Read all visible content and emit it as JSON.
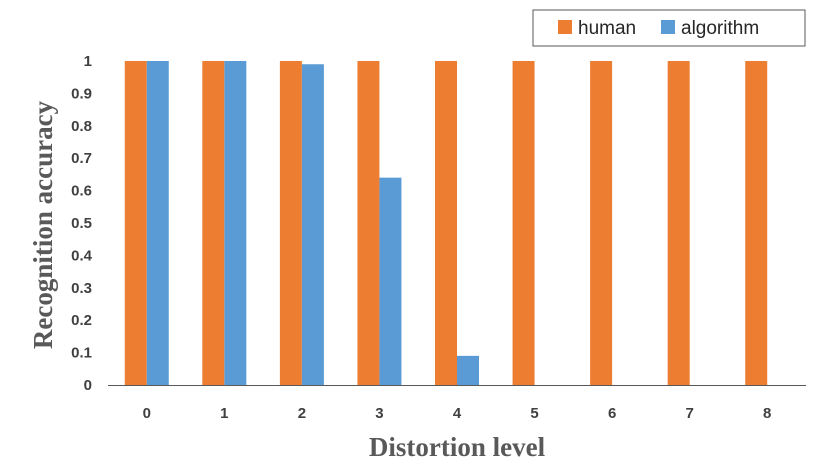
{
  "chart_data": {
    "type": "bar",
    "title": "",
    "xlabel": "Distortion level",
    "ylabel": "Recognition accuracy",
    "categories": [
      "0",
      "1",
      "2",
      "3",
      "4",
      "5",
      "6",
      "7",
      "8"
    ],
    "series": [
      {
        "name": "human",
        "color": "#ED7D31",
        "values": [
          1,
          1,
          1,
          1,
          1,
          1,
          1,
          1,
          1
        ]
      },
      {
        "name": "algorithm",
        "color": "#5B9BD5",
        "values": [
          1,
          1,
          0.99,
          0.64,
          0.09,
          0,
          0,
          0,
          0
        ]
      }
    ],
    "ylim": [
      0,
      1
    ],
    "yticks": [
      "0",
      "0.1",
      "0.2",
      "0.3",
      "0.4",
      "0.5",
      "0.6",
      "0.7",
      "0.8",
      "0.9",
      "1"
    ],
    "grid": false,
    "legend_position": "top-right"
  }
}
